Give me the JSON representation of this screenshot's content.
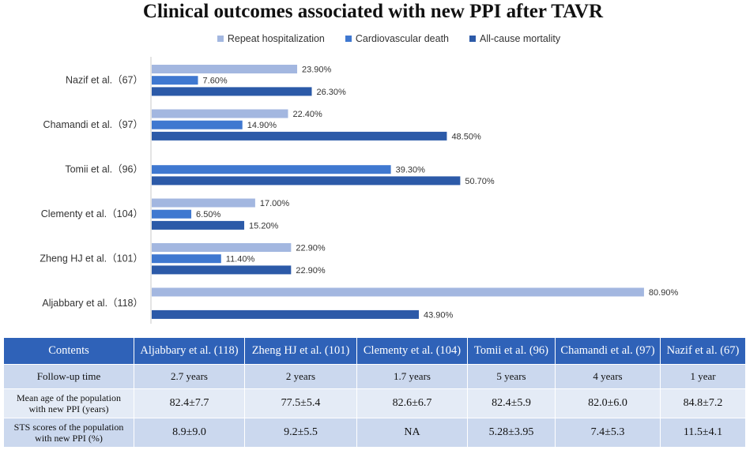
{
  "chart_data": {
    "type": "bar",
    "orientation": "horizontal",
    "title": "Clinical outcomes associated with new PPI after TAVR",
    "categories": [
      "Nazif et al.（67）",
      "Chamandi et al.（97）",
      "Tomii et al.（96）",
      "Clementy et al.（104）",
      "Zheng HJ et al.（101）",
      "Aljabbary et al.（118）"
    ],
    "series": [
      {
        "name": "Repeat hospitalization",
        "color": "#a3b7e0",
        "values": [
          23.9,
          22.4,
          null,
          17.0,
          22.9,
          80.9
        ],
        "labels": [
          "23.90%",
          "22.40%",
          null,
          "17.00%",
          "22.90%",
          "80.90%"
        ]
      },
      {
        "name": "Cardiovascular death",
        "color": "#3f78d0",
        "values": [
          7.6,
          14.9,
          39.3,
          6.5,
          11.4,
          null
        ],
        "labels": [
          "7.60%",
          "14.90%",
          "39.30%",
          "6.50%",
          "11.40%",
          null
        ]
      },
      {
        "name": "All-cause mortality",
        "color": "#2c5aa8",
        "values": [
          26.3,
          48.5,
          50.7,
          15.2,
          22.9,
          43.9
        ],
        "labels": [
          "26.30%",
          "48.50%",
          "50.70%",
          "15.20%",
          "22.90%",
          "43.90%"
        ]
      }
    ],
    "xlim": [
      0,
      100
    ],
    "legend_position": "top"
  },
  "table": {
    "headers": [
      "Contents",
      "Aljabbary et al. (118)",
      "Zheng HJ et al. (101)",
      "Clementy et al. (104)",
      "Tomii et al. (96)",
      "Chamandi et al. (97)",
      "Nazif et al. (67)"
    ],
    "rows": [
      {
        "label": "Follow-up time",
        "cells": [
          "2.7 years",
          "2 years",
          "1.7 years",
          "5 years",
          "4 years",
          "1 year"
        ]
      },
      {
        "label_line1": "Mean age of the population",
        "label_line2": "with new PPI (years)",
        "cells": [
          "82.4±7.7",
          "77.5±5.4",
          "82.6±6.7",
          "82.4±5.9",
          "82.0±6.0",
          "84.8±7.2"
        ]
      },
      {
        "label_line1": "STS scores of the population",
        "label_line2": "with new PPI (%)",
        "cells": [
          "8.9±9.0",
          "9.2±5.5",
          "NA",
          "5.28±3.95",
          "7.4±5.3",
          "11.5±4.1"
        ]
      }
    ]
  }
}
